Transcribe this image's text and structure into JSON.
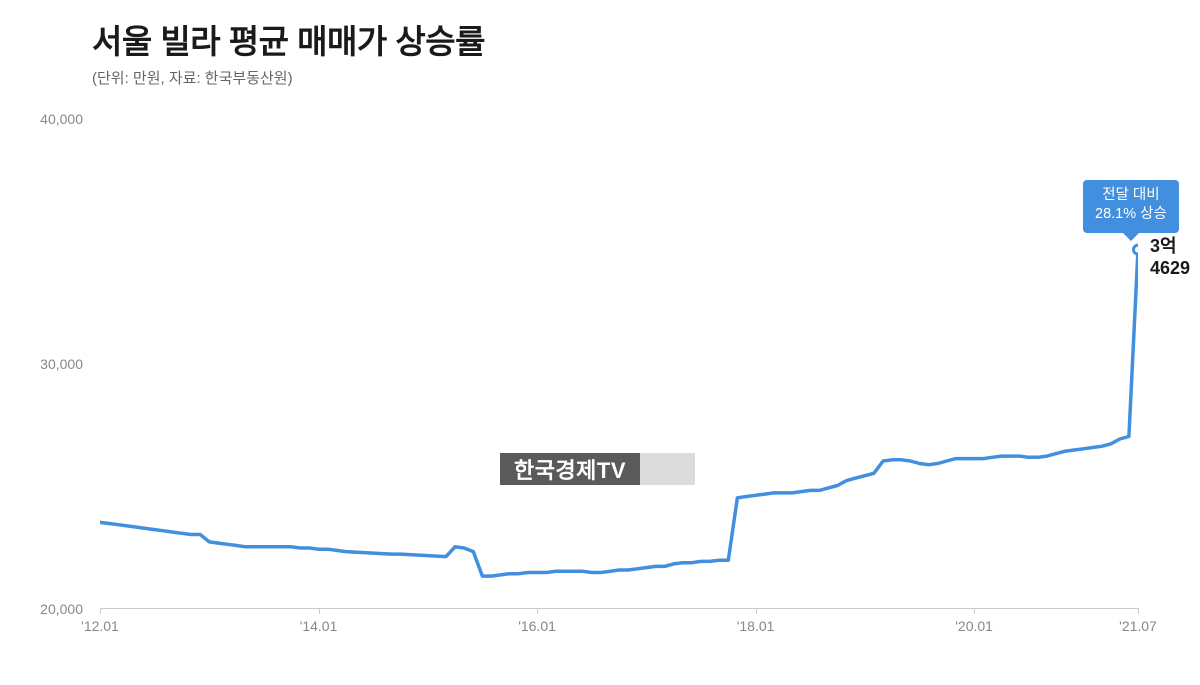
{
  "title": "서울 빌라 평균 매매가 상승률",
  "subtitle": "(단위: 만원, 자료: 한국부동산원)",
  "chart": {
    "type": "line",
    "line_color": "#418fde",
    "line_width": 3.5,
    "background_color": "#ffffff",
    "ylim": [
      20000,
      40000
    ],
    "yticks": [
      20000,
      30000,
      40000
    ],
    "ytick_labels": [
      "20,000",
      "30,000",
      "40,000"
    ],
    "ytick_fontsize": 14,
    "ytick_color": "#888888",
    "xticks": [
      "'12.01",
      "'14.01",
      "'16.01",
      "'18.01",
      "'20.01",
      "'21.07"
    ],
    "xtick_positions": [
      0,
      24,
      48,
      72,
      96,
      114
    ],
    "xtick_fontsize": 14,
    "xtick_color": "#888888",
    "axis_line_color": "#cccccc",
    "data": [
      23500,
      23450,
      23400,
      23350,
      23300,
      23250,
      23200,
      23150,
      23100,
      23050,
      23000,
      23000,
      22700,
      22650,
      22600,
      22550,
      22500,
      22500,
      22500,
      22500,
      22500,
      22500,
      22450,
      22450,
      22400,
      22400,
      22350,
      22300,
      22280,
      22260,
      22240,
      22220,
      22200,
      22200,
      22180,
      22160,
      22140,
      22120,
      22100,
      22500,
      22450,
      22300,
      21300,
      21300,
      21350,
      21400,
      21400,
      21450,
      21450,
      21450,
      21500,
      21500,
      21500,
      21500,
      21450,
      21450,
      21500,
      21550,
      21550,
      21600,
      21650,
      21700,
      21700,
      21800,
      21850,
      21850,
      21900,
      21900,
      21950,
      21950,
      24500,
      24550,
      24600,
      24650,
      24700,
      24700,
      24700,
      24750,
      24800,
      24800,
      24900,
      25000,
      25200,
      25300,
      25400,
      25500,
      26000,
      26050,
      26050,
      26000,
      25900,
      25850,
      25900,
      26000,
      26100,
      26100,
      26100,
      26100,
      26150,
      26200,
      26200,
      26200,
      26150,
      26150,
      26200,
      26300,
      26400,
      26450,
      26500,
      26550,
      26600,
      26700,
      26900,
      27000,
      34629
    ],
    "x_total_points": 115,
    "end_marker": {
      "fill": "#ffffff",
      "stroke": "#418fde",
      "radius": 4.5
    }
  },
  "callout": {
    "line1": "전달 대비",
    "line2": "28.1% 상승",
    "bg_color": "#418fde",
    "text_color": "#ffffff",
    "fontsize": 14.5
  },
  "end_label": "3억4629",
  "title_fontsize": 33,
  "title_color": "#1a1a1a",
  "subtitle_fontsize": 15,
  "subtitle_color": "#666666",
  "watermark": {
    "text": "한국경제TV",
    "dark_bg": "#5a5a5a",
    "light_bg": "#dcdcdc"
  }
}
